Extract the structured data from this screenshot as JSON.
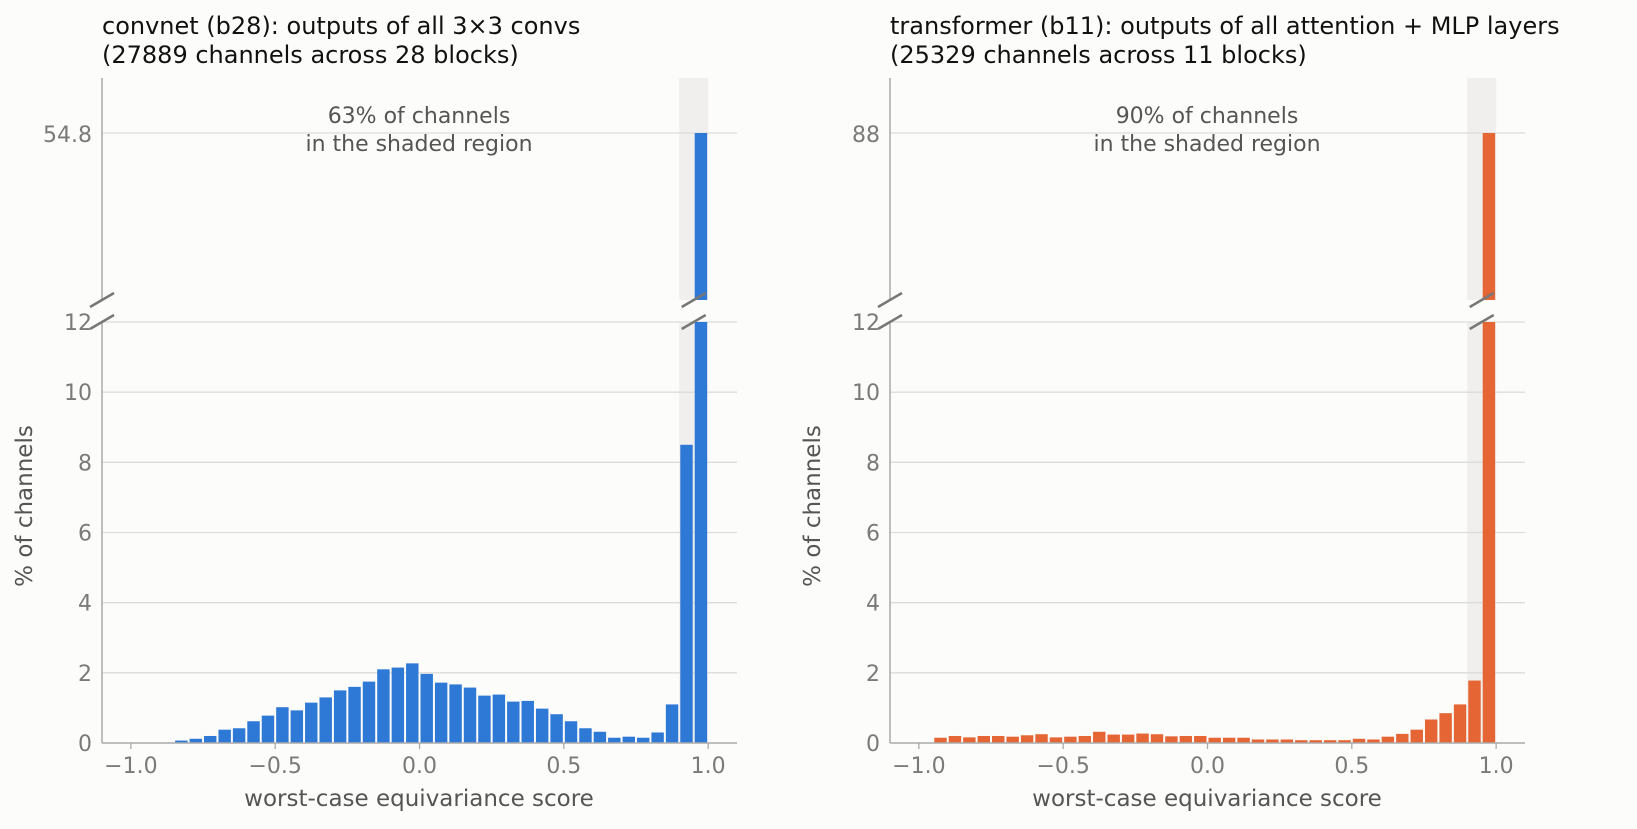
{
  "chart_data": [
    {
      "type": "bar",
      "title_line1": "convnet (b28): outputs of all 3×3 convs",
      "title_line2": "(27889 channels across 28 blocks)",
      "xlabel": "worst-case equivariance score",
      "ylabel": "% of channels",
      "annotation_line1": "63% of channels",
      "annotation_line2": "in the shaded region",
      "color": "#2e78d6",
      "shade_color": "#f0efed",
      "shaded_region": [
        0.9,
        1.0
      ],
      "bin_width": 0.05,
      "x": [
        -0.975,
        -0.925,
        -0.875,
        -0.825,
        -0.775,
        -0.725,
        -0.675,
        -0.625,
        -0.575,
        -0.525,
        -0.475,
        -0.425,
        -0.375,
        -0.325,
        -0.275,
        -0.225,
        -0.175,
        -0.125,
        -0.075,
        -0.025,
        0.025,
        0.075,
        0.125,
        0.175,
        0.225,
        0.275,
        0.325,
        0.375,
        0.425,
        0.475,
        0.525,
        0.575,
        0.625,
        0.675,
        0.725,
        0.775,
        0.825,
        0.875,
        0.925,
        0.975
      ],
      "values": [
        0,
        0,
        0,
        0.07,
        0.12,
        0.2,
        0.38,
        0.42,
        0.62,
        0.78,
        1.02,
        0.93,
        1.15,
        1.3,
        1.5,
        1.6,
        1.75,
        2.1,
        2.15,
        2.27,
        1.97,
        1.72,
        1.67,
        1.58,
        1.35,
        1.38,
        1.18,
        1.2,
        0.98,
        0.82,
        0.62,
        0.42,
        0.32,
        0.15,
        0.18,
        0.15,
        0.3,
        1.1,
        8.5,
        54.8
      ],
      "xlim": [
        -1.1,
        1.1
      ],
      "xticks": [
        -1.0,
        -0.5,
        0.0,
        0.5,
        1.0
      ],
      "xtick_labels": [
        "−1.0",
        "−0.5",
        "0.0",
        "0.5",
        "1.0"
      ],
      "ylim_lower": [
        0,
        12
      ],
      "yticks_lower": [
        0,
        2,
        4,
        6,
        8,
        10,
        12
      ],
      "ylim_upper_tick": 54.8,
      "ytick_upper_label": "54.8",
      "broken_axis": true,
      "grid": true
    },
    {
      "type": "bar",
      "title_line1": "transformer (b11): outputs of all attention + MLP layers",
      "title_line2": "(25329 channels across 11 blocks)",
      "xlabel": "worst-case equivariance score",
      "ylabel": "% of channels",
      "annotation_line1": "90% of channels",
      "annotation_line2": "in the shaded region",
      "color": "#e66534",
      "shade_color": "#f0efed",
      "shaded_region": [
        0.9,
        1.0
      ],
      "bin_width": 0.05,
      "x": [
        -0.975,
        -0.925,
        -0.875,
        -0.825,
        -0.775,
        -0.725,
        -0.675,
        -0.625,
        -0.575,
        -0.525,
        -0.475,
        -0.425,
        -0.375,
        -0.325,
        -0.275,
        -0.225,
        -0.175,
        -0.125,
        -0.075,
        -0.025,
        0.025,
        0.075,
        0.125,
        0.175,
        0.225,
        0.275,
        0.325,
        0.375,
        0.425,
        0.475,
        0.525,
        0.575,
        0.625,
        0.675,
        0.725,
        0.775,
        0.825,
        0.875,
        0.925,
        0.975
      ],
      "values": [
        0,
        0.15,
        0.2,
        0.16,
        0.2,
        0.2,
        0.18,
        0.22,
        0.25,
        0.16,
        0.18,
        0.2,
        0.32,
        0.24,
        0.24,
        0.27,
        0.25,
        0.19,
        0.2,
        0.2,
        0.15,
        0.15,
        0.15,
        0.1,
        0.1,
        0.1,
        0.08,
        0.08,
        0.08,
        0.08,
        0.12,
        0.1,
        0.18,
        0.26,
        0.38,
        0.67,
        0.85,
        1.1,
        1.78,
        88
      ],
      "xlim": [
        -1.1,
        1.1
      ],
      "xticks": [
        -1.0,
        -0.5,
        0.0,
        0.5,
        1.0
      ],
      "xtick_labels": [
        "−1.0",
        "−0.5",
        "0.0",
        "0.5",
        "1.0"
      ],
      "ylim_lower": [
        0,
        12
      ],
      "yticks_lower": [
        0,
        2,
        4,
        6,
        8,
        10,
        12
      ],
      "ylim_upper_tick": 88,
      "ytick_upper_label": "88",
      "broken_axis": true,
      "grid": true
    }
  ]
}
